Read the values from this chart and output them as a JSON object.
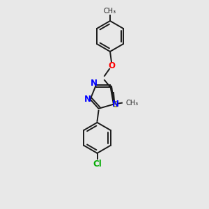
{
  "background_color": "#e8e8e8",
  "bond_color": "#1a1a1a",
  "atom_colors": {
    "N": "#0000ff",
    "O": "#ff0000",
    "S": "#999900",
    "Cl": "#00aa00",
    "C": "#1a1a1a"
  },
  "figsize": [
    3.0,
    3.0
  ],
  "dpi": 100,
  "bond_lw": 1.4,
  "font_size_atom": 8.5,
  "font_size_methyl": 7.0
}
